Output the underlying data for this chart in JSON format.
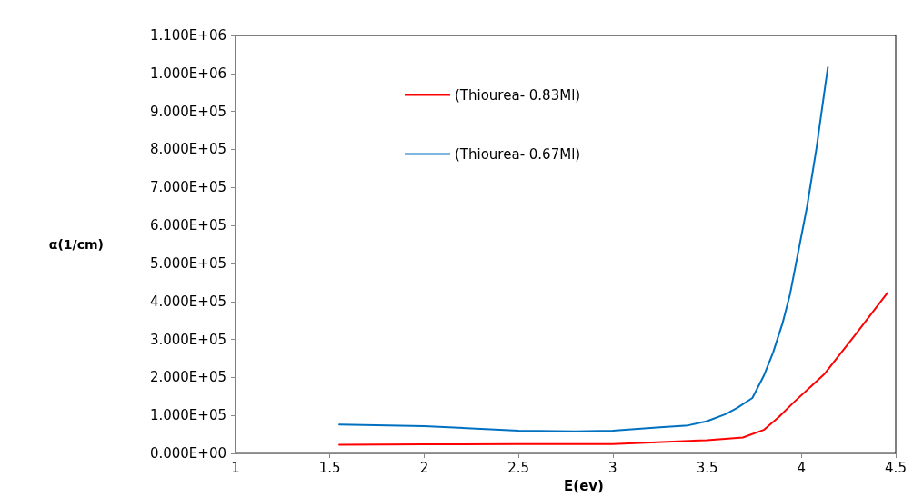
{
  "chart_data": {
    "type": "line",
    "xlabel": "E(ev)",
    "ylabel": "α(1/cm)",
    "xlim": [
      1,
      4.5
    ],
    "xticks": [
      1,
      1.5,
      2,
      2.5,
      3,
      3.5,
      4,
      4.5
    ],
    "ylim": [
      0,
      1100000
    ],
    "yticks": [
      {
        "value": 0,
        "label": "0.000E+00"
      },
      {
        "value": 100000,
        "label": "1.000E+05"
      },
      {
        "value": 200000,
        "label": "2.000E+05"
      },
      {
        "value": 300000,
        "label": "3.000E+05"
      },
      {
        "value": 400000,
        "label": "4.000E+05"
      },
      {
        "value": 500000,
        "label": "5.000E+05"
      },
      {
        "value": 600000,
        "label": "6.000E+05"
      },
      {
        "value": 700000,
        "label": "7.000E+05"
      },
      {
        "value": 800000,
        "label": "8.000E+05"
      },
      {
        "value": 900000,
        "label": "9.000E+05"
      },
      {
        "value": 1000000,
        "label": "1.000E+06"
      },
      {
        "value": 1100000,
        "label": "1.100E+06"
      }
    ],
    "grid": false,
    "legend": "top left",
    "marker": "none",
    "line_style": "solid",
    "series": [
      {
        "name": "(Thiourea- 0.83Ml)",
        "color": "#ff0000",
        "x": [
          1.55,
          2,
          2.5,
          3,
          3.5,
          3.69,
          3.8,
          3.88,
          3.96,
          4.06,
          4.12,
          4.285,
          4.455
        ],
        "values": [
          23000,
          24000,
          25000,
          25000,
          35000,
          42000,
          62000,
          96000,
          135000,
          181000,
          208000,
          312000,
          422000
        ]
      },
      {
        "name": "(Thiourea- 0.67Ml)",
        "color": "#0070c0",
        "x": [
          1.55,
          2,
          2.5,
          2.8,
          3,
          3.25,
          3.4,
          3.5,
          3.6,
          3.66,
          3.74,
          3.8,
          3.85,
          3.9,
          3.94,
          4.03,
          4.08,
          4.14
        ],
        "values": [
          76000,
          72000,
          60000,
          58000,
          60000,
          69000,
          74000,
          85000,
          104000,
          120000,
          146000,
          204000,
          266000,
          343000,
          420000,
          650000,
          804000,
          1016000
        ]
      }
    ]
  }
}
